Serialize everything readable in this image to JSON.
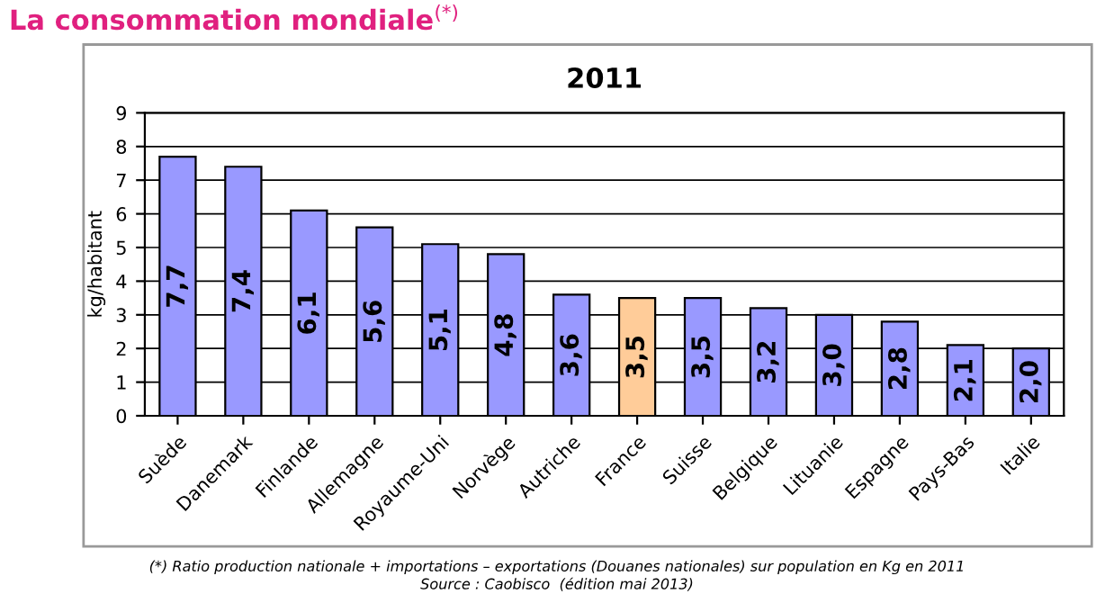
{
  "chart_data": {
    "type": "bar",
    "title": "La consommation mondiale$^{(*)}$",
    "subtitle": "2011",
    "ylabel": "kg/habitant",
    "categories": [
      "Suède",
      "Danemark",
      "Finlande",
      "Allemagne",
      "Royaume-Uni",
      "Norvège",
      "Autriche",
      "France",
      "Suisse",
      "Belgique",
      "Lituanie",
      "Espagne",
      "Pays-Bas",
      "Italie"
    ],
    "values": [
      7.7,
      7.4,
      6.1,
      5.6,
      5.1,
      4.8,
      3.6,
      3.5,
      3.5,
      3.2,
      3.0,
      2.8,
      2.1,
      2.0
    ],
    "value_labels": [
      "7,7",
      "7,4",
      "6,1",
      "5,6",
      "5,1",
      "4,8",
      "3,6",
      "3,5",
      "3,5",
      "3,2",
      "3,0",
      "2,8",
      "2,1",
      "2,0"
    ],
    "colors": [
      "#9999ff",
      "#9999ff",
      "#9999ff",
      "#9999ff",
      "#9999ff",
      "#9999ff",
      "#9999ff",
      "#ffcc99",
      "#9999ff",
      "#9999ff",
      "#9999ff",
      "#9999ff",
      "#9999ff",
      "#9999ff"
    ],
    "ylim": [
      0,
      9
    ],
    "yticks": [
      0,
      1,
      2,
      3,
      4,
      5,
      6,
      7,
      8,
      9
    ],
    "grid": "y",
    "legend": false,
    "annotations": [
      "(*) Ratio production nationale + importations – exportations (Douanes nationales) sur population en Kg en 2011",
      "Source : Caobisco  (édition mai 2013)"
    ]
  }
}
